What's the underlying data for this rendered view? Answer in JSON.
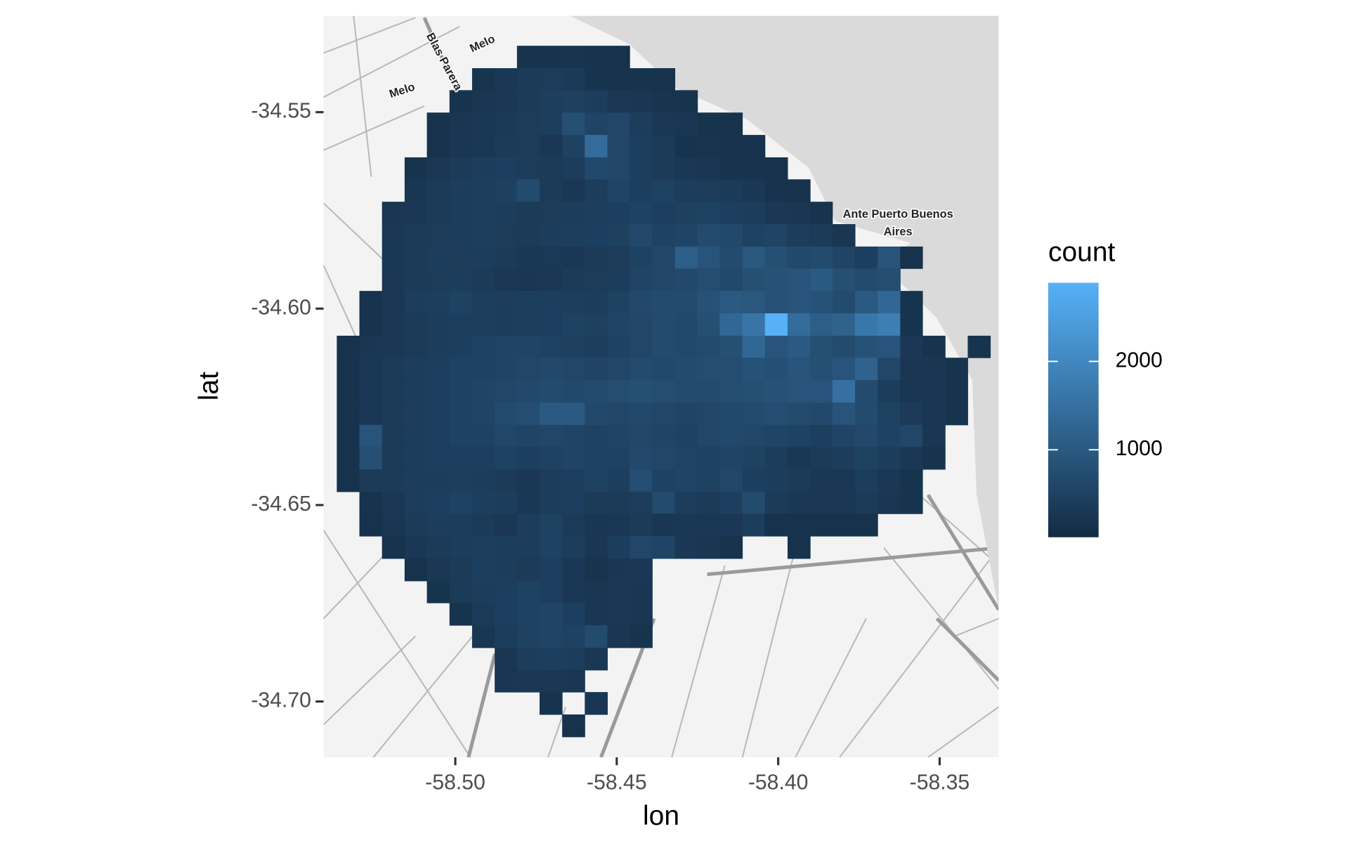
{
  "chart_data": {
    "type": "heatmap",
    "xlabel": "lon",
    "ylabel": "lat",
    "legend_title": "count",
    "xlim": [
      -58.5408,
      -58.3317
    ],
    "ylim": [
      -34.7142,
      -34.5255
    ],
    "xticks": [
      {
        "value": -58.5,
        "label": "-58.50"
      },
      -58.45,
      {
        "value": -58.4,
        "label": "-58.40"
      },
      -58.35
    ],
    "yticks": [
      -34.55,
      {
        "value": -34.6,
        "label": "-34.60"
      },
      -34.65,
      {
        "value": -34.7,
        "label": "-34.70"
      }
    ],
    "fill_limits": [
      10,
      2890
    ],
    "fill_ticks": [
      1000,
      2000
    ],
    "low_color": "#132B43",
    "high_color": "#56B1F7",
    "annotations": [
      "Melo",
      "Melo",
      "Blas Parera",
      "Ante Puerto Buenos",
      "Aires"
    ],
    "xbins": [
      -58.5367,
      -58.5297,
      -58.5227,
      -58.5157,
      -58.5088,
      -58.5018,
      -58.4948,
      -58.4878,
      -58.4809,
      -58.4739,
      -58.4669,
      -58.4599,
      -58.4529,
      -58.446,
      -58.439,
      -58.432,
      -58.425,
      -58.4181,
      -58.4111,
      -58.4041,
      -58.3971,
      -58.3901,
      -58.3832,
      -58.3762,
      -58.3692,
      -58.3622,
      -58.3553,
      -58.3483,
      -58.3413,
      -58.3343
    ],
    "ybins": [
      -34.5331,
      -34.5388,
      -34.5444,
      -34.5501,
      -34.5558,
      -34.5615,
      -34.5671,
      -34.5728,
      -34.5785,
      -34.5842,
      -34.5898,
      -34.5955,
      -34.6012,
      -34.6069,
      -34.6125,
      -34.6182,
      -34.6239,
      -34.6296,
      -34.6352,
      -34.6409,
      -34.6466,
      -34.6522,
      -34.6579,
      -34.6636,
      -34.6693,
      -34.6749,
      -34.6806,
      -34.6863,
      -34.692,
      -34.6976,
      -34.7033,
      -34.709
    ],
    "values": [
      [
        null,
        null,
        null,
        null,
        null,
        null,
        null,
        null,
        180,
        200,
        220,
        180,
        160,
        null,
        null,
        null,
        null,
        null,
        null,
        null,
        null,
        null,
        null,
        null,
        null,
        null,
        null,
        null,
        null
      ],
      [
        null,
        null,
        null,
        null,
        null,
        null,
        220,
        300,
        350,
        380,
        330,
        200,
        180,
        200,
        150,
        null,
        null,
        null,
        null,
        null,
        null,
        null,
        null,
        null,
        null,
        null,
        null,
        null,
        null
      ],
      [
        null,
        null,
        null,
        null,
        null,
        200,
        260,
        300,
        350,
        420,
        480,
        400,
        300,
        250,
        220,
        200,
        null,
        null,
        null,
        null,
        null,
        null,
        null,
        null,
        null,
        null,
        null,
        null,
        null
      ],
      [
        null,
        null,
        null,
        null,
        180,
        250,
        300,
        330,
        380,
        420,
        800,
        550,
        600,
        400,
        300,
        260,
        200,
        150,
        null,
        null,
        null,
        null,
        null,
        null,
        null,
        null,
        null,
        null,
        null
      ],
      [
        null,
        null,
        null,
        null,
        150,
        250,
        300,
        350,
        380,
        300,
        500,
        1400,
        600,
        450,
        350,
        200,
        220,
        180,
        150,
        null,
        null,
        null,
        null,
        null,
        null,
        null,
        null,
        null,
        null
      ],
      [
        null,
        null,
        null,
        200,
        300,
        350,
        400,
        450,
        380,
        350,
        400,
        650,
        600,
        450,
        350,
        300,
        250,
        200,
        180,
        150,
        null,
        null,
        null,
        null,
        null,
        null,
        null,
        null,
        null
      ],
      [
        null,
        null,
        null,
        250,
        350,
        400,
        420,
        480,
        700,
        350,
        300,
        400,
        550,
        450,
        500,
        400,
        380,
        350,
        300,
        200,
        180,
        null,
        null,
        null,
        null,
        null,
        null,
        null,
        null
      ],
      [
        null,
        null,
        250,
        300,
        350,
        400,
        420,
        400,
        350,
        380,
        400,
        420,
        450,
        500,
        450,
        480,
        500,
        450,
        400,
        300,
        250,
        200,
        null,
        null,
        null,
        null,
        null,
        null,
        null
      ],
      [
        null,
        null,
        300,
        350,
        380,
        400,
        420,
        380,
        350,
        400,
        420,
        450,
        480,
        650,
        500,
        550,
        700,
        650,
        500,
        550,
        400,
        350,
        250,
        null,
        null,
        null,
        null,
        null,
        null
      ],
      [
        null,
        null,
        280,
        350,
        400,
        380,
        400,
        350,
        300,
        320,
        300,
        350,
        380,
        500,
        600,
        1100,
        900,
        700,
        950,
        800,
        650,
        700,
        550,
        450,
        900,
        150,
        null,
        null,
        null
      ],
      [
        null,
        null,
        300,
        350,
        380,
        400,
        350,
        300,
        250,
        300,
        350,
        380,
        400,
        550,
        600,
        650,
        750,
        650,
        800,
        850,
        900,
        1000,
        800,
        700,
        750,
        null,
        null,
        null,
        null
      ],
      [
        null,
        200,
        300,
        400,
        450,
        500,
        450,
        400,
        450,
        450,
        420,
        400,
        500,
        650,
        700,
        700,
        850,
        1000,
        950,
        850,
        900,
        850,
        700,
        1000,
        1300,
        200,
        null,
        null,
        null
      ],
      [
        null,
        200,
        300,
        350,
        400,
        450,
        420,
        400,
        420,
        450,
        500,
        480,
        550,
        600,
        700,
        650,
        800,
        1300,
        1600,
        2890,
        1400,
        1100,
        1200,
        1650,
        1800,
        200,
        null,
        null,
        null
      ],
      [
        150,
        250,
        300,
        350,
        400,
        450,
        500,
        550,
        550,
        500,
        480,
        420,
        500,
        600,
        700,
        650,
        700,
        800,
        1300,
        900,
        1000,
        800,
        700,
        850,
        900,
        300,
        200,
        null,
        200
      ],
      [
        150,
        300,
        350,
        400,
        450,
        500,
        500,
        550,
        600,
        650,
        600,
        550,
        600,
        700,
        650,
        700,
        750,
        750,
        850,
        800,
        900,
        800,
        900,
        1200,
        600,
        250,
        250,
        200,
        null
      ],
      [
        150,
        300,
        350,
        400,
        450,
        500,
        550,
        600,
        650,
        700,
        650,
        700,
        750,
        800,
        750,
        700,
        700,
        750,
        800,
        850,
        900,
        900,
        1500,
        700,
        400,
        250,
        250,
        200,
        null
      ],
      [
        150,
        300,
        350,
        400,
        450,
        500,
        550,
        700,
        750,
        1000,
        1000,
        650,
        600,
        650,
        600,
        550,
        600,
        650,
        700,
        750,
        700,
        650,
        900,
        700,
        500,
        350,
        250,
        200,
        null
      ],
      [
        150,
        900,
        350,
        400,
        450,
        500,
        500,
        600,
        550,
        600,
        550,
        500,
        550,
        600,
        550,
        500,
        600,
        650,
        600,
        550,
        500,
        450,
        550,
        650,
        500,
        600,
        250,
        null,
        null
      ],
      [
        150,
        800,
        350,
        400,
        450,
        450,
        450,
        500,
        450,
        500,
        550,
        500,
        500,
        650,
        600,
        550,
        500,
        550,
        500,
        400,
        300,
        350,
        400,
        500,
        400,
        300,
        200,
        null,
        null
      ],
      [
        150,
        350,
        350,
        400,
        400,
        450,
        400,
        350,
        300,
        400,
        450,
        500,
        450,
        750,
        500,
        550,
        500,
        600,
        450,
        400,
        350,
        300,
        300,
        400,
        300,
        200,
        null,
        null,
        null
      ],
      [
        null,
        200,
        300,
        400,
        450,
        500,
        450,
        400,
        300,
        400,
        450,
        350,
        350,
        400,
        700,
        400,
        350,
        450,
        700,
        350,
        300,
        300,
        300,
        350,
        250,
        200,
        null,
        null,
        null
      ],
      [
        null,
        150,
        250,
        350,
        400,
        400,
        350,
        300,
        400,
        500,
        350,
        250,
        300,
        350,
        250,
        300,
        300,
        300,
        400,
        150,
        150,
        150,
        150,
        150,
        null,
        null,
        null,
        null,
        null
      ],
      [
        null,
        null,
        150,
        300,
        350,
        400,
        450,
        400,
        400,
        500,
        400,
        250,
        400,
        600,
        550,
        300,
        250,
        150,
        null,
        null,
        150,
        null,
        null,
        null,
        null,
        null,
        null,
        null,
        null
      ],
      [
        null,
        null,
        null,
        150,
        300,
        350,
        450,
        400,
        350,
        450,
        300,
        200,
        250,
        300,
        null,
        null,
        null,
        null,
        null,
        null,
        null,
        null,
        null,
        null,
        null,
        null,
        null,
        null,
        null
      ],
      [
        null,
        null,
        null,
        null,
        200,
        350,
        400,
        450,
        500,
        450,
        300,
        250,
        300,
        250,
        null,
        null,
        null,
        null,
        null,
        null,
        null,
        null,
        null,
        null,
        null,
        null,
        null,
        null,
        null
      ],
      [
        null,
        null,
        null,
        null,
        null,
        200,
        350,
        450,
        500,
        550,
        450,
        250,
        300,
        250,
        null,
        null,
        null,
        null,
        null,
        null,
        null,
        null,
        null,
        null,
        null,
        null,
        null,
        null,
        null
      ],
      [
        null,
        null,
        null,
        null,
        null,
        null,
        250,
        400,
        500,
        550,
        500,
        700,
        250,
        200,
        null,
        null,
        null,
        null,
        null,
        null,
        null,
        null,
        null,
        null,
        null,
        null,
        null,
        null,
        null
      ],
      [
        null,
        null,
        null,
        null,
        null,
        null,
        null,
        250,
        400,
        450,
        400,
        300,
        null,
        null,
        null,
        null,
        null,
        null,
        null,
        null,
        null,
        null,
        null,
        null,
        null,
        null,
        null,
        null,
        null
      ],
      [
        null,
        null,
        null,
        null,
        null,
        null,
        null,
        250,
        300,
        300,
        250,
        null,
        null,
        null,
        null,
        null,
        null,
        null,
        null,
        null,
        null,
        null,
        null,
        null,
        null,
        null,
        null,
        null,
        null
      ],
      [
        null,
        null,
        null,
        null,
        null,
        null,
        null,
        null,
        null,
        200,
        null,
        250,
        null,
        null,
        null,
        null,
        null,
        null,
        null,
        null,
        null,
        null,
        null,
        null,
        null,
        null,
        null,
        null,
        null
      ],
      [
        null,
        null,
        null,
        null,
        null,
        null,
        null,
        null,
        null,
        null,
        150,
        null,
        null,
        null,
        null,
        null,
        null,
        null,
        null,
        null,
        null,
        null,
        null,
        null,
        null,
        null,
        null,
        null,
        null
      ]
    ]
  }
}
